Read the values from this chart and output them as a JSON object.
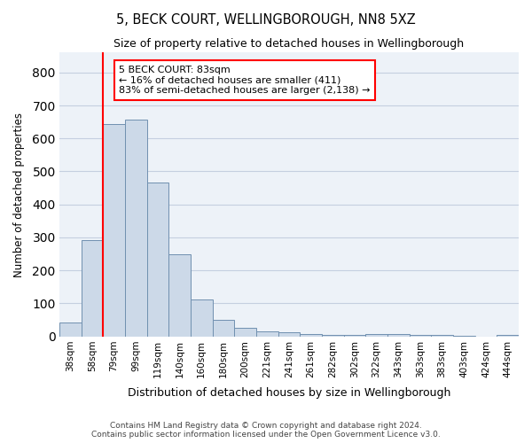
{
  "title": "5, BECK COURT, WELLINGBOROUGH, NN8 5XZ",
  "subtitle": "Size of property relative to detached houses in Wellingborough",
  "xlabel": "Distribution of detached houses by size in Wellingborough",
  "ylabel": "Number of detached properties",
  "bar_color": "#ccd9e8",
  "bar_edgecolor": "#7090b0",
  "grid_color": "#c5cfe0",
  "background_color": "#edf2f8",
  "annotation_text": "5 BECK COURT: 83sqm\n← 16% of detached houses are smaller (411)\n83% of semi-detached houses are larger (2,138) →",
  "annotation_box_color": "white",
  "annotation_border_color": "red",
  "vline_color": "red",
  "categories": [
    "38sqm",
    "58sqm",
    "79sqm",
    "99sqm",
    "119sqm",
    "140sqm",
    "160sqm",
    "180sqm",
    "200sqm",
    "221sqm",
    "241sqm",
    "261sqm",
    "282sqm",
    "302sqm",
    "322sqm",
    "343sqm",
    "363sqm",
    "383sqm",
    "403sqm",
    "424sqm",
    "444sqm"
  ],
  "values": [
    43,
    291,
    644,
    656,
    465,
    250,
    113,
    49,
    26,
    14,
    13,
    8,
    5,
    5,
    8,
    7,
    5,
    3,
    2,
    0,
    5
  ],
  "ylim": [
    0,
    860
  ],
  "yticks": [
    0,
    100,
    200,
    300,
    400,
    500,
    600,
    700,
    800
  ],
  "footer": "Contains HM Land Registry data © Crown copyright and database right 2024.\nContains public sector information licensed under the Open Government Licence v3.0.",
  "vline_index": 2
}
